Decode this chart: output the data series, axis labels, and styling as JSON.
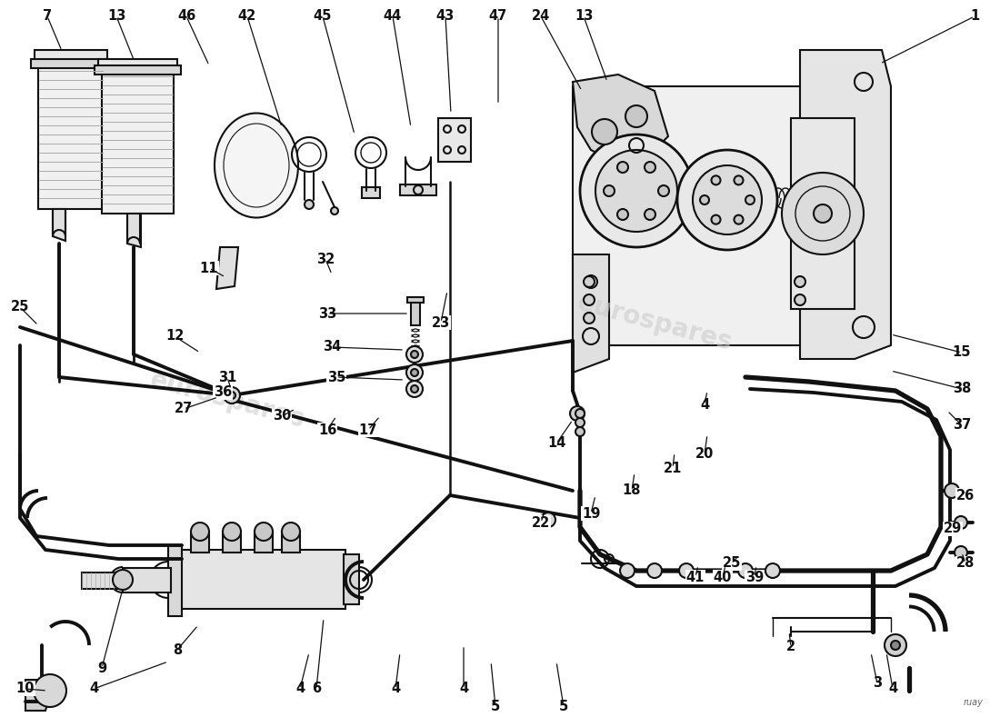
{
  "background_color": "#ffffff",
  "line_color": "#111111",
  "label_color": "#111111",
  "watermark_color": "#cccccc",
  "fig_width": 11.0,
  "fig_height": 8.0,
  "dpi": 100,
  "labels": [
    [
      "7",
      55,
      18
    ],
    [
      "13",
      130,
      18
    ],
    [
      "46",
      208,
      18
    ],
    [
      "42",
      275,
      18
    ],
    [
      "45",
      358,
      18
    ],
    [
      "44",
      435,
      18
    ],
    [
      "43",
      492,
      18
    ],
    [
      "47",
      548,
      18
    ],
    [
      "24",
      598,
      18
    ],
    [
      "13",
      645,
      18
    ],
    [
      "1",
      1072,
      18
    ],
    [
      "25",
      22,
      338
    ],
    [
      "12",
      195,
      372
    ],
    [
      "31",
      252,
      415
    ],
    [
      "36",
      248,
      435
    ],
    [
      "27",
      205,
      453
    ],
    [
      "30",
      312,
      458
    ],
    [
      "16",
      362,
      475
    ],
    [
      "17",
      408,
      475
    ],
    [
      "23",
      488,
      358
    ],
    [
      "14",
      615,
      488
    ],
    [
      "11",
      232,
      298
    ],
    [
      "32",
      360,
      288
    ],
    [
      "33",
      362,
      348
    ],
    [
      "34",
      367,
      385
    ],
    [
      "35",
      372,
      418
    ],
    [
      "15",
      1058,
      388
    ],
    [
      "38",
      1058,
      428
    ],
    [
      "37",
      1058,
      468
    ],
    [
      "26",
      1062,
      548
    ],
    [
      "29",
      1048,
      585
    ],
    [
      "28",
      1062,
      622
    ],
    [
      "4",
      105,
      758
    ],
    [
      "4",
      332,
      758
    ],
    [
      "6",
      348,
      758
    ],
    [
      "4",
      438,
      758
    ],
    [
      "4",
      512,
      758
    ],
    [
      "5",
      548,
      778
    ],
    [
      "5",
      622,
      778
    ],
    [
      "4",
      985,
      758
    ],
    [
      "2",
      872,
      712
    ],
    [
      "3",
      968,
      752
    ],
    [
      "22",
      598,
      578
    ],
    [
      "19",
      652,
      568
    ],
    [
      "18",
      698,
      542
    ],
    [
      "21",
      742,
      518
    ],
    [
      "20",
      778,
      502
    ],
    [
      "4",
      778,
      448
    ],
    [
      "41",
      768,
      638
    ],
    [
      "40",
      798,
      638
    ],
    [
      "39",
      832,
      638
    ],
    [
      "25",
      808,
      622
    ],
    [
      "8",
      198,
      718
    ],
    [
      "9",
      115,
      738
    ],
    [
      "10",
      28,
      758
    ]
  ]
}
